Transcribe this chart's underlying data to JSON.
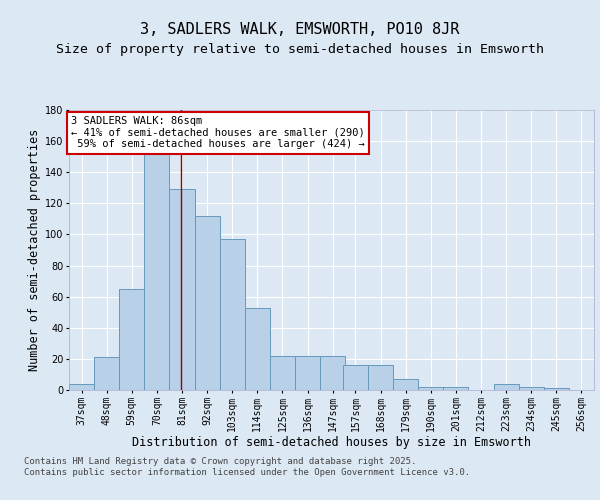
{
  "title": "3, SADLERS WALK, EMSWORTH, PO10 8JR",
  "subtitle": "Size of property relative to semi-detached houses in Emsworth",
  "xlabel": "Distribution of semi-detached houses by size in Emsworth",
  "ylabel": "Number of semi-detached properties",
  "bin_starts": [
    37,
    48,
    59,
    70,
    81,
    92,
    103,
    114,
    125,
    136,
    147,
    157,
    168,
    179,
    190,
    201,
    212,
    223,
    234,
    245
  ],
  "bin_labels": [
    "37sqm",
    "48sqm",
    "59sqm",
    "70sqm",
    "81sqm",
    "92sqm",
    "103sqm",
    "114sqm",
    "125sqm",
    "136sqm",
    "147sqm",
    "157sqm",
    "168sqm",
    "179sqm",
    "190sqm",
    "201sqm",
    "212sqm",
    "223sqm",
    "234sqm",
    "245sqm",
    "256sqm"
  ],
  "counts": [
    4,
    21,
    65,
    152,
    129,
    112,
    97,
    53,
    22,
    22,
    22,
    16,
    16,
    7,
    2,
    2,
    0,
    4,
    2,
    1
  ],
  "bar_color": "#b8d0e8",
  "bar_edge_color": "#6699bb",
  "property_size": 86,
  "vline_color": "#990000",
  "annotation_text": "3 SADLERS WALK: 86sqm\n← 41% of semi-detached houses are smaller (290)\n 59% of semi-detached houses are larger (424) →",
  "annotation_box_color": "#ffffff",
  "annotation_box_edge": "#cc0000",
  "background_color": "#dce8f4",
  "plot_bg_color": "#dce8f4",
  "footer": "Contains HM Land Registry data © Crown copyright and database right 2025.\nContains public sector information licensed under the Open Government Licence v3.0.",
  "ylim": [
    0,
    180
  ],
  "yticks": [
    0,
    20,
    40,
    60,
    80,
    100,
    120,
    140,
    160,
    180
  ],
  "grid_color": "#ffffff",
  "title_fontsize": 11,
  "subtitle_fontsize": 9.5,
  "axis_label_fontsize": 8.5,
  "tick_fontsize": 7,
  "footer_fontsize": 6.5,
  "bin_width": 11
}
